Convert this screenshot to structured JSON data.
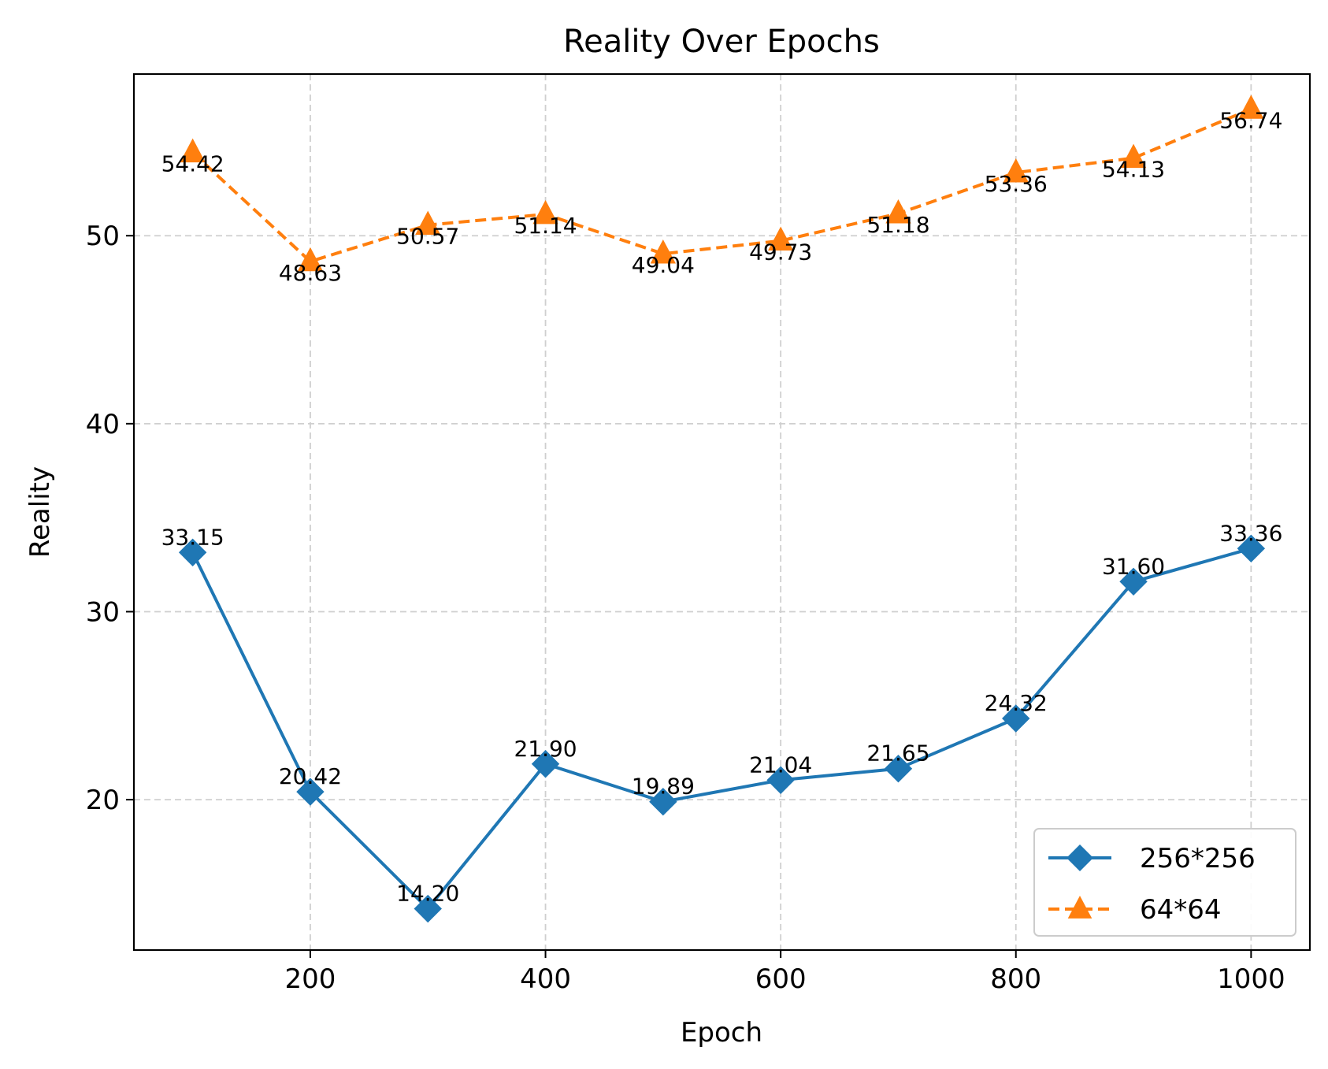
{
  "chart_data": {
    "type": "line",
    "title": "Reality Over Epochs",
    "xlabel": "Epoch",
    "ylabel": "Reality",
    "x": [
      100,
      200,
      300,
      400,
      500,
      600,
      700,
      800,
      900,
      1000
    ],
    "xlim": [
      50,
      1050
    ],
    "ylim": [
      12.0,
      58.6
    ],
    "xticks": [
      200,
      400,
      600,
      800,
      1000
    ],
    "yticks": [
      20,
      30,
      40,
      50
    ],
    "grid": true,
    "legend_position": "bottom-right",
    "series": [
      {
        "name": "256*256",
        "values": [
          33.15,
          20.42,
          14.2,
          21.9,
          19.89,
          21.04,
          21.65,
          24.32,
          31.6,
          33.36
        ],
        "labels": [
          "33.15",
          "20.42",
          "14.20",
          "21.90",
          "19.89",
          "21.04",
          "21.65",
          "24.32",
          "31.60",
          "33.36"
        ],
        "color": "#1f77b4",
        "line_style": "solid",
        "marker": "diamond",
        "label_position": "above"
      },
      {
        "name": "64*64",
        "values": [
          54.42,
          48.63,
          50.57,
          51.14,
          49.04,
          49.73,
          51.18,
          53.36,
          54.13,
          56.74
        ],
        "labels": [
          "54.42",
          "48.63",
          "50.57",
          "51.14",
          "49.04",
          "49.73",
          "51.18",
          "53.36",
          "54.13",
          "56.74"
        ],
        "color": "#ff7f0e",
        "line_style": "dashed",
        "marker": "triangle",
        "label_position": "below"
      }
    ]
  }
}
